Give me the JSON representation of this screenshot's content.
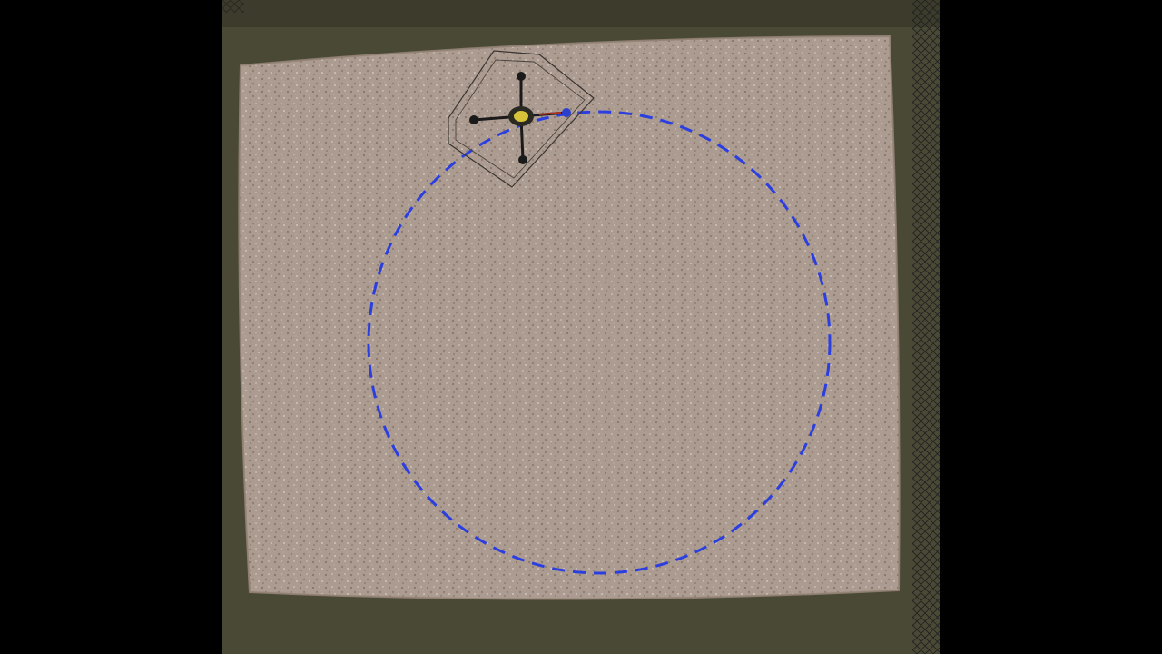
{
  "scene": {
    "description_free": true,
    "colors": {
      "letterbox": "#000000",
      "floor_frame": "#4a4936",
      "mat": "#a7958a",
      "mat_speck_dark": "#7d6a5f",
      "mat_speck_light": "#cfc2b8",
      "trajectory": "#2b3fe0",
      "drone_body": "#1a1a1a",
      "drone_accent": "#d8c23a",
      "drone_rotor_red": "#b03020",
      "drone_rotor_blue": "#2a3fd0",
      "guard": "#3a3530",
      "net": "#1c1c1c"
    },
    "icons": [
      "quadcopter-icon"
    ]
  }
}
